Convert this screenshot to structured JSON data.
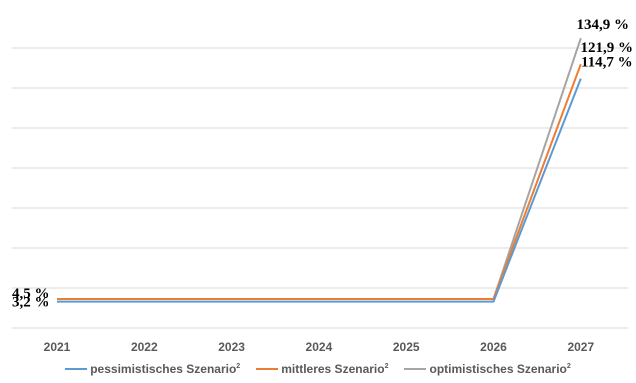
{
  "chart_data": {
    "type": "line",
    "categories": [
      "2021",
      "2022",
      "2023",
      "2024",
      "2025",
      "2026",
      "2027"
    ],
    "series": [
      {
        "name": "pessimistisches Szenario",
        "sup": "2",
        "color": "#5b9bd5",
        "values": [
          3.2,
          3.2,
          3.2,
          3.2,
          3.2,
          3.2,
          114.7
        ]
      },
      {
        "name": "mittleres Szenario",
        "sup": "2",
        "color": "#ed7d31",
        "values": [
          4.5,
          4.5,
          4.5,
          4.5,
          4.5,
          4.5,
          121.9
        ]
      },
      {
        "name": "optimistisches Szenario",
        "sup": "2",
        "color": "#a5a5a5",
        "values": [
          4.5,
          4.5,
          4.5,
          4.5,
          4.5,
          4.5,
          134.9
        ]
      }
    ],
    "data_labels": [
      {
        "series": 1,
        "index": 0,
        "text": "4,5 %"
      },
      {
        "series": 0,
        "index": 0,
        "text": "3,2 %"
      },
      {
        "series": 2,
        "index": 6,
        "text": "134,9 %"
      },
      {
        "series": 1,
        "index": 6,
        "text": "121,9 %"
      },
      {
        "series": 0,
        "index": 6,
        "text": "114,7 %"
      }
    ],
    "ylim": [
      -10,
      140
    ],
    "grid": true,
    "legend_position": "bottom"
  }
}
